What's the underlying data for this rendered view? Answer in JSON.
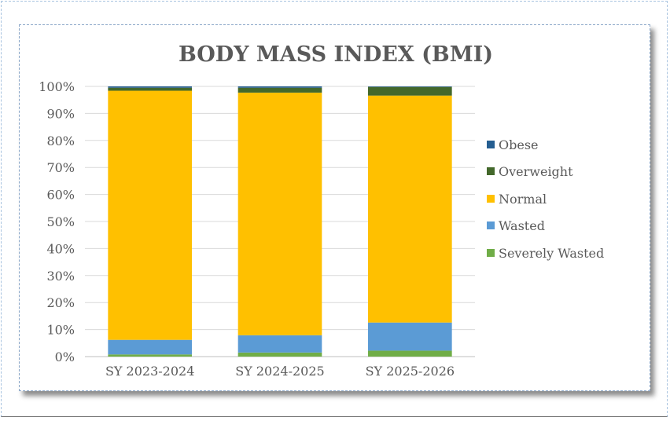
{
  "chart_data": {
    "type": "bar",
    "stacked": true,
    "percent": true,
    "title": "BODY MASS INDEX (BMI)",
    "categories": [
      "SY 2023-2024",
      "SY 2024-2025",
      "SY 2025-2026"
    ],
    "y_ticks": [
      "0%",
      "10%",
      "20%",
      "30%",
      "40%",
      "50%",
      "60%",
      "70%",
      "80%",
      "90%",
      "100%"
    ],
    "ylim": [
      0,
      100
    ],
    "grid": true,
    "legend_position": "right",
    "series": [
      {
        "name": "Severely Wasted",
        "color": "#70ad47",
        "values": [
          0.8,
          1.5,
          2.2
        ]
      },
      {
        "name": "Wasted",
        "color": "#5b9bd5",
        "values": [
          5.4,
          6.4,
          10.4
        ]
      },
      {
        "name": "Normal",
        "color": "#ffc000",
        "values": [
          92.2,
          89.8,
          84.0
        ]
      },
      {
        "name": "Overweight",
        "color": "#43682b",
        "values": [
          1.1,
          1.8,
          3.2
        ]
      },
      {
        "name": "Obese",
        "color": "#255e91",
        "values": [
          0.5,
          0.5,
          0.2
        ]
      }
    ],
    "legend_order": [
      "Obese",
      "Overweight",
      "Normal",
      "Wasted",
      "Severely Wasted"
    ]
  }
}
